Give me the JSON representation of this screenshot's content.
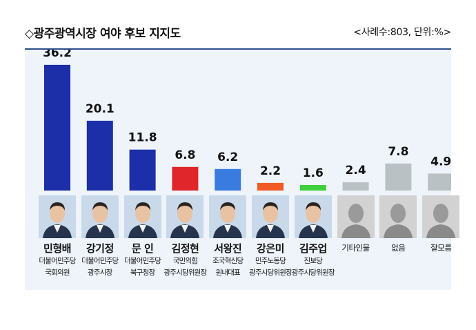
{
  "title": "◇광주광역시장 여야 후보 지지도",
  "note": "<사례수:803, 단위:%>",
  "colors": {
    "dem": "#1c2ea8",
    "demLight": "#1f3fbf",
    "ppp": "#e1262b",
    "rebuild": "#3a7be0",
    "labor": "#f25a23",
    "jinbo": "#3fcf3f",
    "gray": "#b9c1c4"
  },
  "candidates": [
    {
      "name": "민형배",
      "party": "더불어민주당",
      "role": "국회의원",
      "photo": "person"
    },
    {
      "name": "강기정",
      "party": "더불어민주당",
      "role": "광주시장",
      "photo": "person"
    },
    {
      "name": "문  인",
      "party": "더불어민주당",
      "role": "북구청장",
      "photo": "person"
    },
    {
      "name": "김정현",
      "party": "국민의힘",
      "role": "광주시당위원장",
      "photo": "person"
    },
    {
      "name": "서왕진",
      "party": "조국혁신당",
      "role": "원내대표",
      "photo": "person"
    },
    {
      "name": "강은미",
      "party": "민주노동당",
      "role": "광주시당위원장",
      "photo": "person"
    },
    {
      "name": "김주업",
      "party": "진보당",
      "role": "광주시당위원장",
      "photo": "person"
    },
    {
      "name": "기타인물",
      "photo": "silhouette"
    },
    {
      "name": "없음",
      "photo": "silhouette"
    },
    {
      "name": "잘모름",
      "photo": "silhouette"
    }
  ],
  "chart_data": {
    "type": "bar",
    "categories": [
      "민형배",
      "강기정",
      "문  인",
      "김정현",
      "서왕진",
      "강은미",
      "김주업",
      "기타인물",
      "없음",
      "잘모름"
    ],
    "values": [
      36.2,
      20.1,
      11.8,
      6.8,
      6.2,
      2.2,
      1.6,
      2.4,
      7.8,
      4.9
    ],
    "value_labels": [
      "36.2",
      "20.1",
      "11.8",
      "6.8",
      "6.2",
      "2.2",
      "1.6",
      "2.4",
      "7.8",
      "4.9"
    ],
    "bar_colors": [
      "#1c2ea8",
      "#1c2ea8",
      "#1c2ea8",
      "#e1262b",
      "#3a7be0",
      "#f25a23",
      "#3fcf3f",
      "#b9c1c4",
      "#b9c1c4",
      "#b9c1c4"
    ],
    "ylim": [
      0,
      40
    ],
    "grid": false,
    "legend": "none"
  }
}
